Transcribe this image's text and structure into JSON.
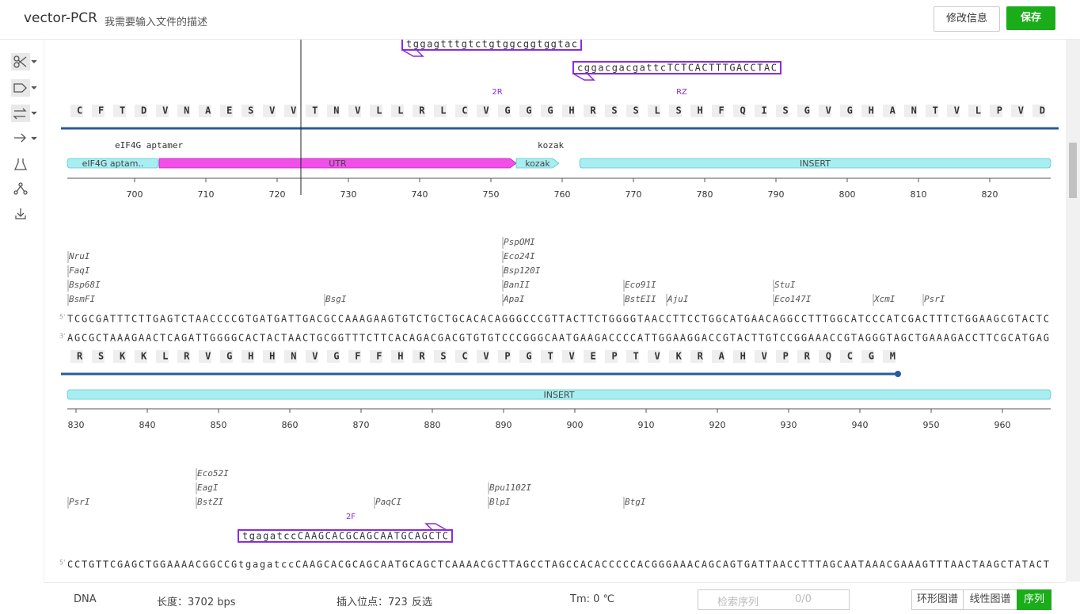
{
  "header": {
    "title": "vector-PCR",
    "description": "我需要输入文件的描述",
    "edit_button": "修改信息",
    "save_button": "保存"
  },
  "rows": [
    {
      "primers": [
        "tggagtttgtctgtggcggtggtac",
        "cggacgacgattcTCTCACTTTGACCTAC"
      ],
      "primer_labels": [
        "2R",
        "RZ"
      ],
      "amino_acids": "CFTDVNAESVVTNVLLRLCVGGGHRSSLSHFQISGVGHANTVLPVD",
      "feature_labels": [
        "eIF4G aptamer",
        "kozak"
      ],
      "features": [
        "eIF4G aptam..",
        "UTR",
        "kozak",
        "INSERT"
      ],
      "ticks": [
        700,
        710,
        720,
        730,
        740,
        750,
        760,
        770,
        780,
        790,
        800,
        810,
        820
      ]
    },
    {
      "enzymes": [
        "NruI",
        "FaqI",
        "Bsp68I",
        "BsmFI",
        "BsgI",
        "PspOMI",
        "Eco24I",
        "Bsp120I",
        "BanII",
        "ApaI",
        "Eco91I",
        "BstEII",
        "AjuI",
        "StuI",
        "Eco147I",
        "XcmI",
        "PsrI"
      ],
      "strand_labels": [
        "5'",
        "3'"
      ],
      "top_strand": "TCGCGATTTCTTGAGTCTAACCCCGTGATGATTGACGCCAAAGAAGTGTCTGCTGCACACAGGGCCCGTTACTTCTGGGGTAACCTTCCTGGCATGAACAGGCCTTTGGCATCCCATCGACTTTCTGGAAGCGTACTC",
      "bottom_strand": "AGCGCTAAAGAACTCAGATTGGGGCACTACTAACTGCGGTTTCTTCACAGACGACGTGTGTCCCGGGCAATGAAGACCCCATTGGAAGGACCGTACTTGTCCGGAAACCGTAGGGTAGCTGAAAGACCTTCGCATGAG",
      "amino_acids": "RSKKLRVGHHNVGFFHRSCVPGTVEPTVKRAHVPRQCGM",
      "features": [
        "INSERT"
      ],
      "ticks": [
        830,
        840,
        850,
        860,
        870,
        880,
        890,
        900,
        910,
        920,
        930,
        940,
        950,
        960
      ]
    },
    {
      "enzymes": [
        "PsrI",
        "Eco52I",
        "EagI",
        "BstZI",
        "PaqCI",
        "Bpu1102I",
        "BlpI",
        "BtgI"
      ],
      "primer_labels": [
        "2F"
      ],
      "primers": [
        "tgagatccCAAGCACGCAGCAATGCAGCTC"
      ],
      "strand_labels": [
        "5'"
      ],
      "top_strand": "CCTGTTCGAGCTGGAAAACGGCCGtgagatccCAAGCACGCAGCAATGCAGCTCAAAACGCTTAGCCTAGCCACACCCCCACGGGAAACAGCAGTGATTAACCTTTAGCAATAAACGAAAGTTTAACTAAGCTATACT"
    }
  ],
  "footer": {
    "type": "DNA",
    "length": "长度：3702 bps",
    "insert_site": "插入位点：723",
    "invert": "反选",
    "tm": "Tm: 0 ℃",
    "search_placeholder": "检索序列",
    "search_count": "0/0",
    "tabs": [
      "环形图谱",
      "线性图谱",
      "序列"
    ]
  }
}
